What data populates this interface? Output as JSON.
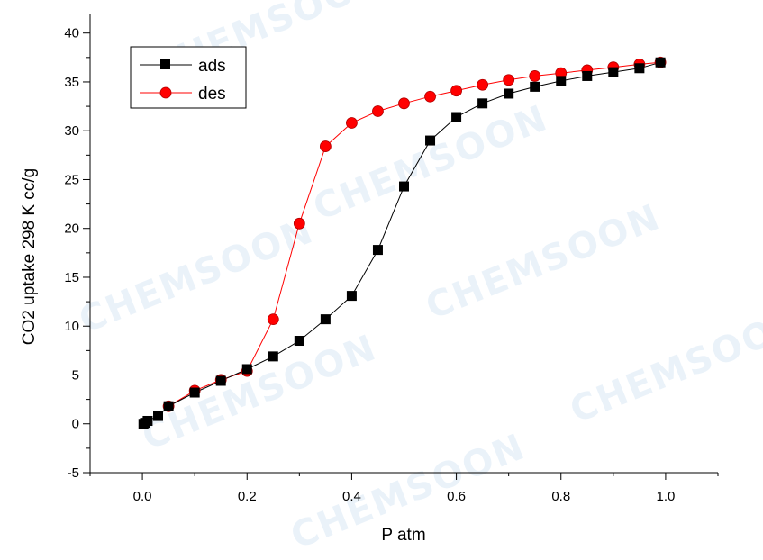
{
  "watermark_text": "CHEMSOON",
  "colors": {
    "ads": "#000000",
    "des": "#ff0000",
    "des_edge": "#b00000"
  },
  "chart_data": {
    "type": "line",
    "xlabel": "P atm",
    "ylabel": "CO2 uptake  298 K  cc/g",
    "xlim": [
      -0.1,
      1.1
    ],
    "ylim": [
      -5,
      42
    ],
    "x_ticks": [
      0.0,
      0.2,
      0.4,
      0.6,
      0.8,
      1.0
    ],
    "x_tick_labels": [
      "0.0",
      "0.2",
      "0.4",
      "0.6",
      "0.8",
      "1.0"
    ],
    "y_ticks": [
      -5,
      0,
      5,
      10,
      15,
      20,
      25,
      30,
      35,
      40
    ],
    "y_tick_labels": [
      "-5",
      "0",
      "5",
      "10",
      "15",
      "20",
      "25",
      "30",
      "35",
      "40"
    ],
    "legend_position": "top-left",
    "grid": false,
    "series": [
      {
        "name": "ads",
        "marker": "square",
        "color": "#000000",
        "x": [
          0.002,
          0.005,
          0.01,
          0.03,
          0.05,
          0.1,
          0.15,
          0.2,
          0.25,
          0.3,
          0.35,
          0.4,
          0.45,
          0.5,
          0.55,
          0.6,
          0.65,
          0.7,
          0.75,
          0.8,
          0.85,
          0.9,
          0.95,
          0.99
        ],
        "y": [
          0.0,
          0.1,
          0.3,
          0.8,
          1.8,
          3.2,
          4.4,
          5.6,
          6.9,
          8.5,
          10.7,
          13.1,
          17.8,
          24.3,
          29.0,
          31.4,
          32.8,
          33.8,
          34.5,
          35.1,
          35.6,
          36.0,
          36.4,
          37.0
        ]
      },
      {
        "name": "des",
        "marker": "circle",
        "color": "#ff0000",
        "x": [
          0.05,
          0.1,
          0.15,
          0.2,
          0.25,
          0.3,
          0.35,
          0.4,
          0.45,
          0.5,
          0.55,
          0.6,
          0.65,
          0.7,
          0.75,
          0.8,
          0.85,
          0.9,
          0.95,
          0.99
        ],
        "y": [
          1.8,
          3.4,
          4.5,
          5.4,
          10.7,
          20.5,
          28.4,
          30.8,
          32.0,
          32.8,
          33.5,
          34.1,
          34.7,
          35.2,
          35.6,
          35.9,
          36.2,
          36.5,
          36.8,
          37.0
        ]
      }
    ]
  }
}
